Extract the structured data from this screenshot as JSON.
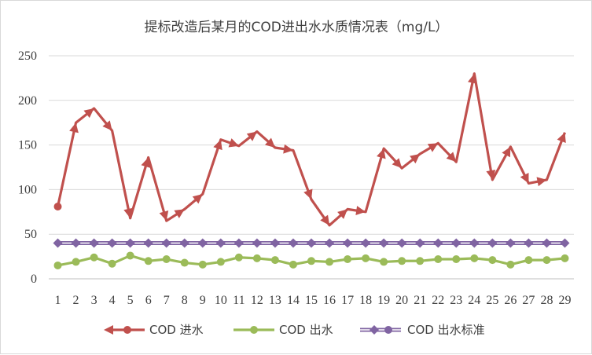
{
  "chart_data": {
    "type": "line",
    "title": "提标改造后某月的COD进出水水质情况表（mg/L）",
    "xlabel": "",
    "ylabel": "",
    "categories": [
      "1",
      "2",
      "3",
      "4",
      "5",
      "6",
      "7",
      "8",
      "9",
      "10",
      "11",
      "12",
      "13",
      "14",
      "15",
      "16",
      "17",
      "18",
      "19",
      "20",
      "21",
      "22",
      "23",
      "24",
      "25",
      "26",
      "27",
      "28",
      "29"
    ],
    "yticks": [
      "0",
      "50",
      "100",
      "150",
      "200",
      "250"
    ],
    "ylim": [
      0,
      250
    ],
    "grid": true,
    "legend_position": "bottom",
    "series": [
      {
        "name": "COD 进水",
        "color": "#c0504d",
        "marker": "arrow",
        "values": [
          81,
          175,
          191,
          166,
          68,
          136,
          65,
          78,
          95,
          156,
          149,
          165,
          147,
          144,
          89,
          60,
          78,
          75,
          146,
          124,
          140,
          152,
          131,
          230,
          111,
          148,
          107,
          111,
          164
        ]
      },
      {
        "name": "COD 出水",
        "color": "#9bbb59",
        "marker": "circle",
        "values": [
          15,
          19,
          24,
          17,
          26,
          20,
          22,
          18,
          16,
          19,
          24,
          23,
          21,
          16,
          20,
          19,
          22,
          23,
          19,
          20,
          20,
          22,
          22,
          23,
          21,
          16,
          21,
          21,
          23
        ]
      },
      {
        "name": "COD 出水标准",
        "color": "#8064a2",
        "marker": "diamond",
        "values": [
          40,
          40,
          40,
          40,
          40,
          40,
          40,
          40,
          40,
          40,
          40,
          40,
          40,
          40,
          40,
          40,
          40,
          40,
          40,
          40,
          40,
          40,
          40,
          40,
          40,
          40,
          40,
          40,
          40
        ]
      }
    ]
  }
}
